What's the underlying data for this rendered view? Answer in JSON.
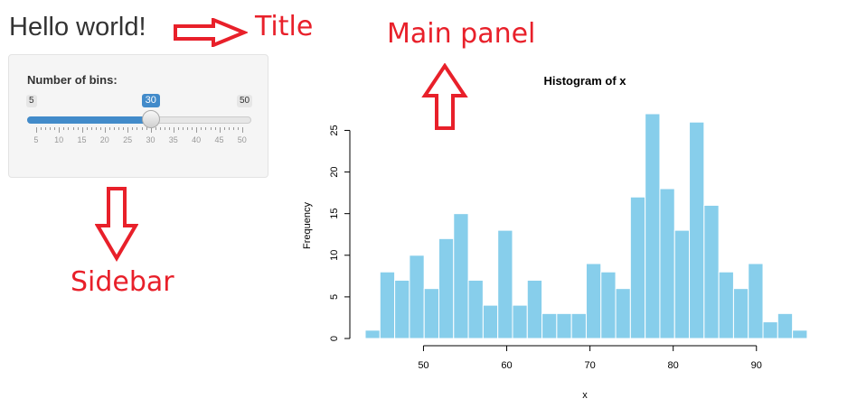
{
  "page": {
    "title": "Hello world!"
  },
  "annotations": {
    "title": "Title",
    "main_panel": "Main panel",
    "sidebar": "Sidebar",
    "color": "#e8202a"
  },
  "sidebar": {
    "slider": {
      "label": "Number of bins:",
      "min": 5,
      "max": 50,
      "value": 30,
      "min_label": "5",
      "max_label": "50",
      "value_label": "30",
      "ticks": [
        "5",
        "10",
        "15",
        "20",
        "25",
        "30",
        "35",
        "40",
        "45",
        "50"
      ],
      "accent": "#428bca"
    }
  },
  "chart_data": {
    "type": "bar",
    "title": "Histogram of x",
    "xlabel": "x",
    "ylabel": "Frequency",
    "bar_color": "#87ceeb",
    "bin_start": 43,
    "bin_width": 1.77,
    "values": [
      1,
      8,
      7,
      10,
      6,
      12,
      15,
      7,
      4,
      13,
      4,
      7,
      3,
      3,
      3,
      9,
      8,
      6,
      17,
      27,
      18,
      13,
      26,
      16,
      8,
      6,
      9,
      2,
      3,
      1
    ],
    "xlim": [
      43,
      96
    ],
    "ylim": [
      0,
      27
    ],
    "xticks": [
      50,
      60,
      70,
      80,
      90
    ],
    "yticks": [
      0,
      5,
      10,
      15,
      20,
      25
    ]
  }
}
